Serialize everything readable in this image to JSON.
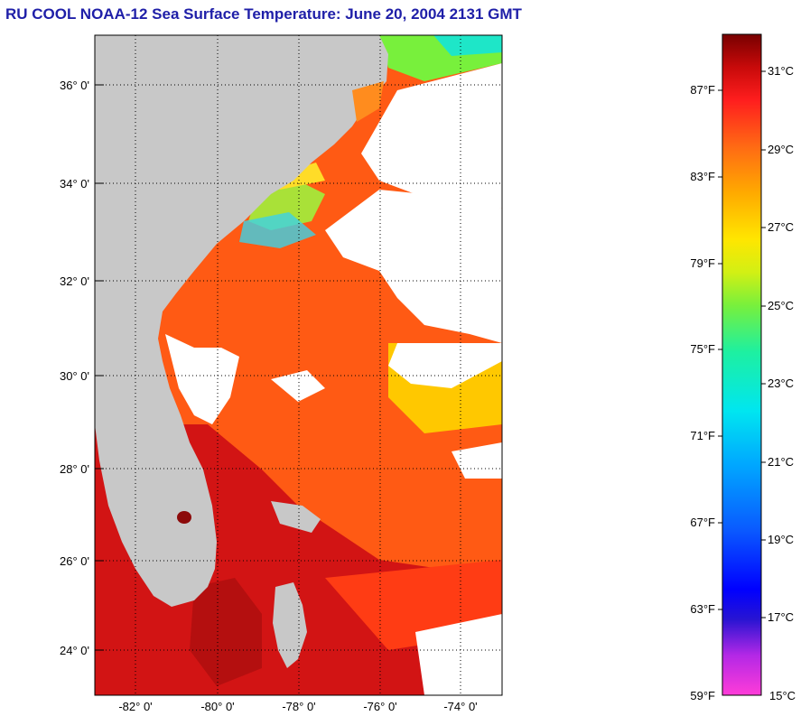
{
  "title": "RU COOL  NOAA-12  Sea Surface Temperature:  June 20, 2004 2131 GMT",
  "map": {
    "lat_labels": [
      "36° 0'",
      "34° 0'",
      "32° 0'",
      "30° 0'",
      "28° 0'",
      "26° 0'",
      "24° 0'"
    ],
    "lon_labels": [
      "-82° 0'",
      "-80° 0'",
      "-78° 0'",
      "-76° 0'",
      "-74° 0'"
    ]
  },
  "colorbar": {
    "fahrenheit_labels": [
      "87°F",
      "83°F",
      "79°F",
      "75°F",
      "71°F",
      "67°F",
      "63°F",
      "59°F"
    ],
    "celsius_labels": [
      "31°C",
      "29°C",
      "27°C",
      "25°C",
      "23°C",
      "21°C",
      "19°C",
      "17°C",
      "15°C"
    ]
  },
  "colors": {
    "title": "#1f1fa8",
    "land": "#c8c8c8",
    "cloud": "#ffffff",
    "warm": "#ff5a14",
    "hot": "#d21414"
  }
}
